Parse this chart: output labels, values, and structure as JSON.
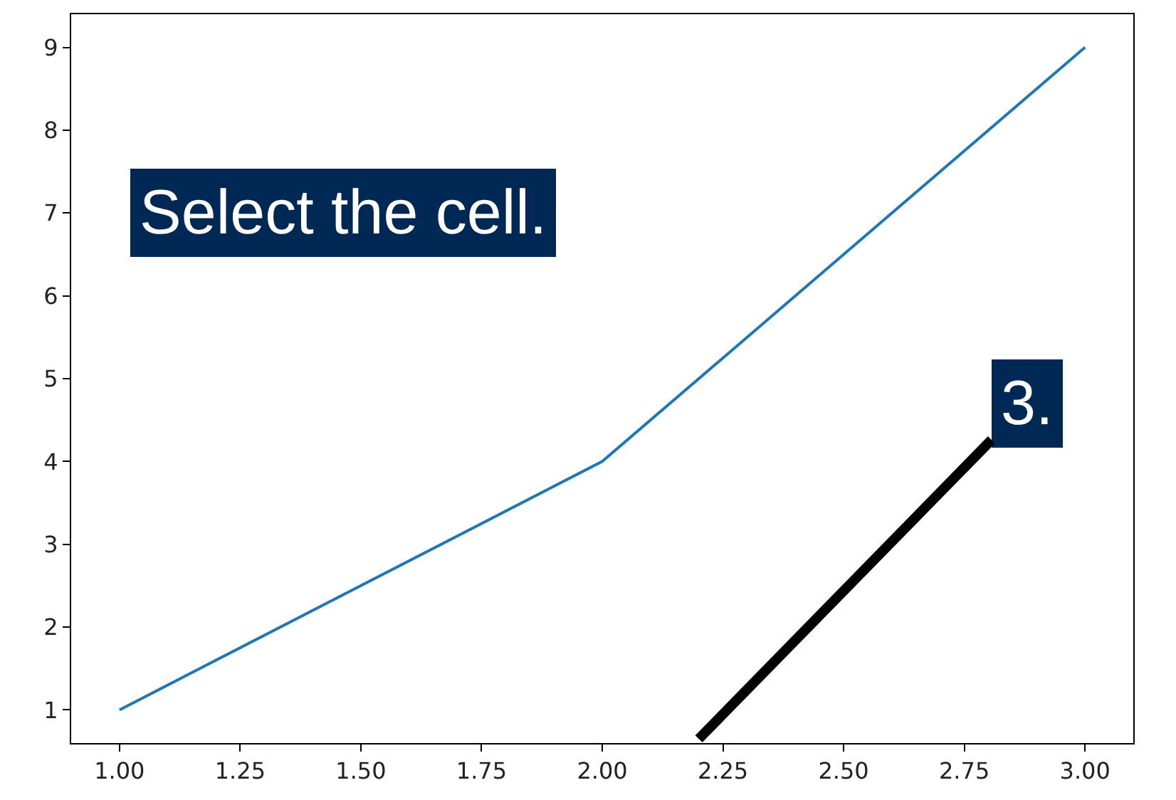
{
  "chart_data": {
    "type": "line",
    "x": [
      1,
      2,
      3
    ],
    "series": [
      {
        "color": "#1f77b4",
        "values": [
          1,
          4,
          9
        ]
      }
    ],
    "xlim": [
      0.9,
      3.1
    ],
    "xticks": [
      {
        "value": 1,
        "label": "1.00"
      },
      {
        "value": 1.25,
        "label": "1.25"
      },
      {
        "value": 1.5,
        "label": "1.50"
      },
      {
        "value": 1.75,
        "label": "1.75"
      },
      {
        "value": 2,
        "label": "2.00"
      },
      {
        "value": 2.25,
        "label": "2.25"
      },
      {
        "value": 2.5,
        "label": "2.50"
      },
      {
        "value": 2.75,
        "label": "2.75"
      },
      {
        "value": 3,
        "label": "3.00"
      }
    ],
    "ylim": [
      0.6,
      9.4
    ],
    "yticks": [
      1,
      2,
      3,
      4,
      5,
      6,
      7,
      8,
      9
    ],
    "marker": "none",
    "line_style": "solid",
    "annotations": [
      "Select the cell.",
      "3."
    ]
  }
}
